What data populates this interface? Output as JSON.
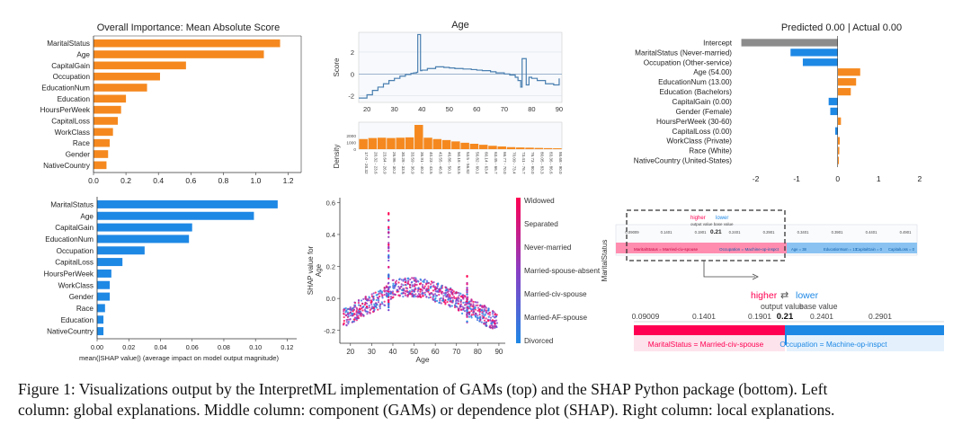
{
  "caption": {
    "line1": "Figure 1: Visualizations output by the InterpretML implementation of GAMs (top) and the SHAP Python package (bottom). Left",
    "line2": "column: global explanations. Middle column: component (GAMs) or dependence plot (SHAP). Right column: local explanations."
  },
  "colors": {
    "gam": "#f5891f",
    "shap_blue": "#1e88e5",
    "shap_red": "#ff0052",
    "gray": "#8c8c8c",
    "curve": "#4a7fb0"
  },
  "chart_data": [
    {
      "id": "gam_global",
      "type": "bar",
      "title": "Overall Importance: Mean Absolute Score",
      "orientation": "horizontal",
      "categories": [
        "MaritalStatus",
        "Age",
        "CapitalGain",
        "Occupation",
        "EducationNum",
        "Education",
        "HoursPerWeek",
        "CapitalLoss",
        "WorkClass",
        "Race",
        "Gender",
        "NativeCountry"
      ],
      "values": [
        1.15,
        1.05,
        0.57,
        0.41,
        0.33,
        0.2,
        0.17,
        0.15,
        0.12,
        0.1,
        0.09,
        0.08
      ],
      "xticks": [
        "0.0",
        "0.2",
        "0.4",
        "0.6",
        "0.8",
        "1.0",
        "1.2"
      ],
      "xlim": [
        0,
        1.28
      ]
    },
    {
      "id": "shap_global",
      "type": "bar",
      "orientation": "horizontal",
      "title": "",
      "xlabel": "mean(|SHAP value|) (average impact on model output magnitude)",
      "categories": [
        "MaritalStatus",
        "Age",
        "CapitalGain",
        "EducationNum",
        "Occupation",
        "CapitalLoss",
        "HoursPerWeek",
        "WorkClass",
        "Gender",
        "Race",
        "Education",
        "NativeCountry"
      ],
      "values": [
        0.114,
        0.099,
        0.06,
        0.058,
        0.03,
        0.016,
        0.009,
        0.008,
        0.008,
        0.005,
        0.004,
        0.004
      ],
      "xticks": [
        "0.00",
        "0.02",
        "0.04",
        "0.06",
        "0.08",
        "0.10",
        "0.12"
      ],
      "xlim": [
        0,
        0.126
      ]
    },
    {
      "id": "gam_component",
      "type": "line",
      "title": "Age",
      "ylabel": "Score",
      "xlim": [
        17,
        91
      ],
      "ylim": [
        -2.6,
        3.8
      ],
      "yticks": [
        "-2",
        "0",
        "2"
      ],
      "xticks": [
        "20",
        "30",
        "40",
        "50",
        "60",
        "70",
        "80",
        "90"
      ],
      "x": [
        17,
        20,
        22,
        24,
        26,
        28,
        30,
        32,
        34,
        36,
        37,
        38,
        38.5,
        39,
        39.5,
        40,
        42,
        45,
        48,
        50,
        52,
        55,
        58,
        60,
        62,
        65,
        67,
        70,
        72,
        74,
        75,
        76,
        76.5,
        77,
        78,
        79,
        80,
        82,
        85,
        88,
        90
      ],
      "y": [
        -2.2,
        -1.9,
        -1.5,
        -1.2,
        -0.9,
        -0.6,
        -0.4,
        -0.2,
        -0.05,
        0.05,
        0.1,
        0.15,
        3.6,
        3.6,
        0.3,
        0.35,
        0.5,
        0.65,
        0.6,
        0.55,
        0.5,
        0.45,
        0.4,
        0.35,
        0.3,
        0.2,
        0.1,
        0.0,
        -0.1,
        -0.3,
        -0.6,
        -1.2,
        1.4,
        1.4,
        -1.0,
        -0.3,
        -0.4,
        -0.6,
        -0.9,
        -1.0,
        -0.4
      ],
      "density": {
        "label": "Density",
        "ticks": [
          "0",
          "1000",
          "2000"
        ],
        "bin_labels": [
          "17.0 - 20.32",
          "20.32 - 23.6",
          "23.64 - 26.9",
          "26.96 - 30.2",
          "30.28 - 33.5",
          "33.59 - 36.9",
          "36.91 - 40.2",
          "40.23 - 43.5",
          "43.55 - 46.8",
          "46.86 - 50.1",
          "50.18 - 53.5",
          "53.5 - 56.82",
          "56.82 - 60.1",
          "60.14 - 63.4",
          "63.45 - 66.7",
          "66.77 - 70.0",
          "70.09 - 73.4",
          "73.41 - 76.7",
          "76.73 - 80.0",
          "80.05 - 83.3",
          "83.36 - 86.6",
          "86.68 - 90.0"
        ],
        "values": [
          1500,
          1650,
          1700,
          1650,
          1700,
          1750,
          3600,
          1700,
          1500,
          1350,
          1150,
          950,
          800,
          650,
          500,
          400,
          300,
          250,
          220,
          180,
          150,
          130
        ],
        "max": 4000
      }
    },
    {
      "id": "shap_dependence",
      "type": "scatter",
      "xlabel": "Age",
      "ylabel": "SHAP value for\nAge",
      "xlim": [
        15,
        93
      ],
      "ylim": [
        -0.28,
        0.63
      ],
      "xticks": [
        "20",
        "30",
        "40",
        "50",
        "60",
        "70",
        "80",
        "90"
      ],
      "yticks": [
        "-0.2",
        "0.0",
        "0.2",
        "0.4",
        "0.6"
      ],
      "legend": [
        "Widowed",
        "Separated",
        "Never-married",
        "Married-spouse-absent",
        "Married-civ-spouse",
        "Married-AF-spouse",
        "Divorced"
      ],
      "trend_x": [
        17,
        20,
        25,
        30,
        35,
        38,
        40,
        45,
        50,
        55,
        60,
        65,
        70,
        75,
        80,
        85,
        90
      ],
      "trend_y": [
        -0.12,
        -0.1,
        -0.06,
        -0.03,
        0.0,
        0.04,
        0.06,
        0.07,
        0.07,
        0.06,
        0.04,
        0.02,
        -0.01,
        -0.05,
        -0.08,
        -0.12,
        -0.15
      ],
      "spike_age": 38,
      "spike_range": [
        -0.1,
        0.55
      ]
    },
    {
      "id": "gam_local",
      "type": "bar",
      "orientation": "horizontal",
      "title": "Predicted 0.00 | Actual 0.00",
      "categories": [
        "Intercept",
        "MaritalStatus (Never-married)",
        "Occupation (Other-service)",
        "Age (54.00)",
        "EducationNum (13.00)",
        "Education (Bachelors)",
        "CapitalGain (0.00)",
        "Gender (Female)",
        "HoursPerWeek (30-60)",
        "CapitalLoss (0.00)",
        "WorkClass (Private)",
        "Race (White)",
        "NativeCountry (United-States)"
      ],
      "values": [
        -2.35,
        -1.15,
        -0.85,
        0.55,
        0.45,
        0.32,
        -0.22,
        -0.18,
        0.08,
        -0.06,
        0.05,
        0.04,
        0.03
      ],
      "xticks": [
        "-2",
        "-1",
        "0",
        "1",
        "2"
      ],
      "xlim": [
        -2.45,
        2.2
      ]
    }
  ],
  "force_plot": {
    "higher": "higher",
    "lower": "lower",
    "output_value": "output value",
    "base_value": "base value",
    "ticks": [
      "0.09009",
      "0.1401",
      "0.1901",
      "0.2401",
      "0.2901"
    ],
    "current": "0.21",
    "red_feature": "MaritalStatus = Married-civ-spouse",
    "blue_feature": "Occupation = Machine-op-inspct",
    "small_blue_features": [
      "Age = 38",
      "EducationNum = 13",
      "CapitalGain = 0",
      "CapitalLoss = 0"
    ],
    "small_ticks": [
      "0.09009",
      "0.1401",
      "0.1901",
      "0.2401",
      "0.2901",
      "0.3401",
      "0.3901",
      "0.4401",
      "0.4901"
    ],
    "row_label": "MaritalStatus"
  }
}
